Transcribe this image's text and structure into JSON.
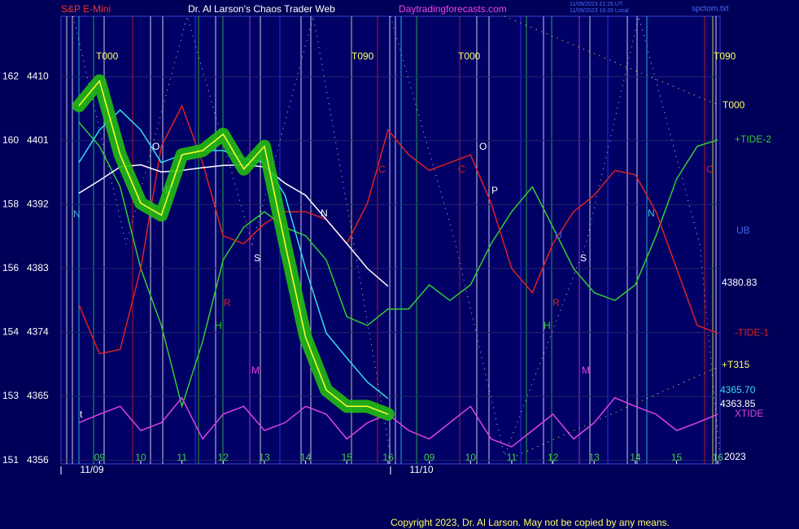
{
  "chart_data": {
    "type": "line",
    "title": "S&P E-Mini",
    "subtitle": "Dr. Al Larson's Chaos Trader Web",
    "site": "Daytradingforecasts.com",
    "timestamps": [
      "11/09/2023 21:26 UT",
      "11/09/2023 16:26 Local"
    ],
    "file_name": "spctom.txt",
    "copyright": "Copyright 2023, Dr. Al Larson. May not be copied by any means.",
    "categories": [
      null,
      "09",
      null,
      "10",
      null,
      "11",
      null,
      "12",
      null,
      "13",
      null,
      "14",
      null,
      "15",
      null,
      "16",
      null,
      "09",
      null,
      "10",
      null,
      "11",
      null,
      "12",
      null,
      "13",
      null,
      "14",
      null,
      "15",
      null,
      "16"
    ],
    "dates": [
      "11/09",
      "11/10"
    ],
    "ylim": [
      4355.5,
      4418.5
    ],
    "yticks": [
      4410,
      4401,
      4392,
      4383,
      4374,
      4365,
      4356
    ],
    "left_labels": [
      "162",
      "160",
      "158",
      "156",
      "154",
      "153",
      "151"
    ],
    "grid": true,
    "grid_color": "#24246e",
    "top_markers": [
      "T000",
      "T090",
      "T000",
      "T090"
    ],
    "right_labels": [
      "T000",
      "UB",
      "4380.83",
      "+T315",
      "4365.70",
      "4363.85",
      "2023"
    ],
    "annotations": [
      "N",
      "O",
      "P",
      "R",
      "H",
      "M",
      "S",
      "C",
      "N",
      "C",
      "O",
      "P",
      "U",
      "S",
      "R",
      "H",
      "M",
      "N",
      "C",
      "t"
    ],
    "series": [
      {
        "name": "+TIDE-2",
        "color": "#33cc33",
        "values": [
          4403.6,
          4400.2,
          4394.5,
          4383,
          4375,
          4363.6,
          4372.7,
          4384.2,
          4388.8,
          4391,
          4388.8,
          4387.6,
          4384.2,
          4376.2,
          4375,
          4377.3,
          4377.3,
          4380.7,
          4378.5,
          4380.7,
          4386.5,
          4391,
          4394.5,
          4388.8,
          4383,
          4379.6,
          4378.5,
          4380.7,
          4387.6,
          4395.6,
          4400.2,
          4401.1
        ]
      },
      {
        "name": "-TIDE-1",
        "color": "#dd2222",
        "values": [
          4377.9,
          4371,
          4371.6,
          4383,
          4400.2,
          4405.9,
          4397.9,
          4387.6,
          4386.5,
          4389.3,
          4391,
          4391,
          4389.9,
          4386.5,
          4392.2,
          4402.5,
          4399,
          4396.8,
          4397.9,
          4399,
          4392.2,
          4383,
          4379.6,
          4386.5,
          4391,
          4393.3,
          4396.8,
          4396.2,
          4391,
          4383,
          4375,
          4373.9
        ]
      },
      {
        "name": "XTIDE",
        "color": "#dd44dd",
        "values": [
          4361.3,
          4362.5,
          4363.6,
          4360.2,
          4361.3,
          4364.8,
          4359.0,
          4362.5,
          4363.6,
          4360.2,
          4361.3,
          4363.6,
          4362.5,
          4359.0,
          4361.3,
          4362.5,
          4360.2,
          4359.0,
          4361.3,
          4363.6,
          4359.0,
          4357.9,
          4360.2,
          4362.5,
          4359.0,
          4361.3,
          4364.8,
          4363.6,
          4362.5,
          4360.2,
          4361.3,
          4362.5
        ]
      },
      {
        "color": "#ffffff",
        "values": [
          4393.6,
          4395.4,
          4397.3,
          4397.6,
          4396.6,
          4396.8,
          4397.2,
          4397.5,
          4397.6,
          4397.3,
          4395,
          4393.3,
          4389.9,
          4386.5,
          4383,
          4380.5,
          null,
          null,
          null,
          null,
          null,
          null,
          null,
          null,
          null,
          null,
          null,
          null,
          null,
          null,
          null,
          null
        ]
      },
      {
        "color": "#33ddee",
        "values": [
          4397.9,
          4402.5,
          4405.3,
          4402.5,
          4397.9,
          4399,
          4399.6,
          4399.6,
          4398.5,
          4397.9,
          4393.3,
          4383,
          4373.9,
          4370.4,
          4367,
          4364.7,
          null,
          null,
          null,
          null,
          null,
          null,
          null,
          null,
          null,
          null,
          null,
          null,
          null,
          null,
          null,
          null
        ]
      },
      {
        "color": "#ffff33",
        "glow": "#22bb11",
        "values": [
          4405.9,
          4409.4,
          4399,
          4392.2,
          4390.5,
          4399,
          4399.6,
          4401.9,
          4397,
          4400.2,
          4386.5,
          4373.3,
          4365.9,
          4363.6,
          4363.6,
          4362.5,
          null,
          null,
          null,
          null,
          null,
          null,
          null,
          null,
          null,
          null,
          null,
          null,
          null,
          null,
          null,
          null
        ]
      }
    ]
  }
}
